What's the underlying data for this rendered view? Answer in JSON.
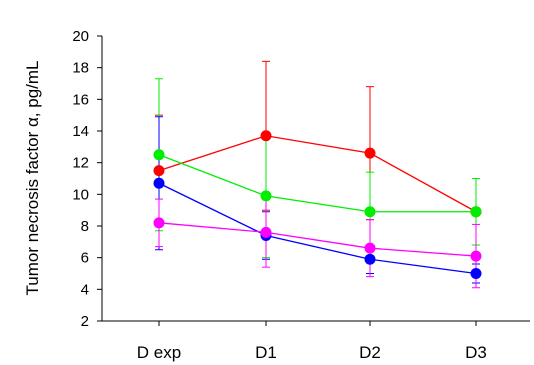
{
  "chart_data": {
    "type": "line",
    "title": "",
    "xlabel": "",
    "ylabel": "Tumor necrosis factor α, pg/mL",
    "categories": [
      "D exp",
      "D1",
      "D2",
      "D3"
    ],
    "ylim": [
      2,
      20
    ],
    "yticks": [
      2,
      4,
      6,
      8,
      10,
      12,
      14,
      16,
      18,
      20
    ],
    "grid": false,
    "legend": "none",
    "series": [
      {
        "color": "#ff0000",
        "values": [
          11.5,
          13.7,
          12.6,
          8.9
        ],
        "err_low": [
          3.5,
          4.7,
          4.2,
          2.1
        ],
        "err_high": [
          3.5,
          4.7,
          4.2,
          2.1
        ]
      },
      {
        "color": "#00ee00",
        "values": [
          12.5,
          9.9,
          8.9,
          8.9
        ],
        "err_low": [
          4.8,
          3.9,
          2.5,
          2.1
        ],
        "err_high": [
          4.8,
          3.9,
          2.5,
          2.1
        ]
      },
      {
        "color": "#0000ff",
        "values": [
          10.7,
          7.4,
          5.9,
          5.0
        ],
        "err_low": [
          4.2,
          1.5,
          0.9,
          0.6
        ],
        "err_high": [
          4.2,
          1.5,
          0.9,
          0.6
        ]
      },
      {
        "color": "#ff00ff",
        "values": [
          8.2,
          7.6,
          6.6,
          6.1
        ],
        "err_low": [
          1.5,
          2.2,
          1.8,
          2.0
        ],
        "err_high": [
          1.5,
          2.2,
          1.8,
          2.0
        ]
      }
    ]
  }
}
